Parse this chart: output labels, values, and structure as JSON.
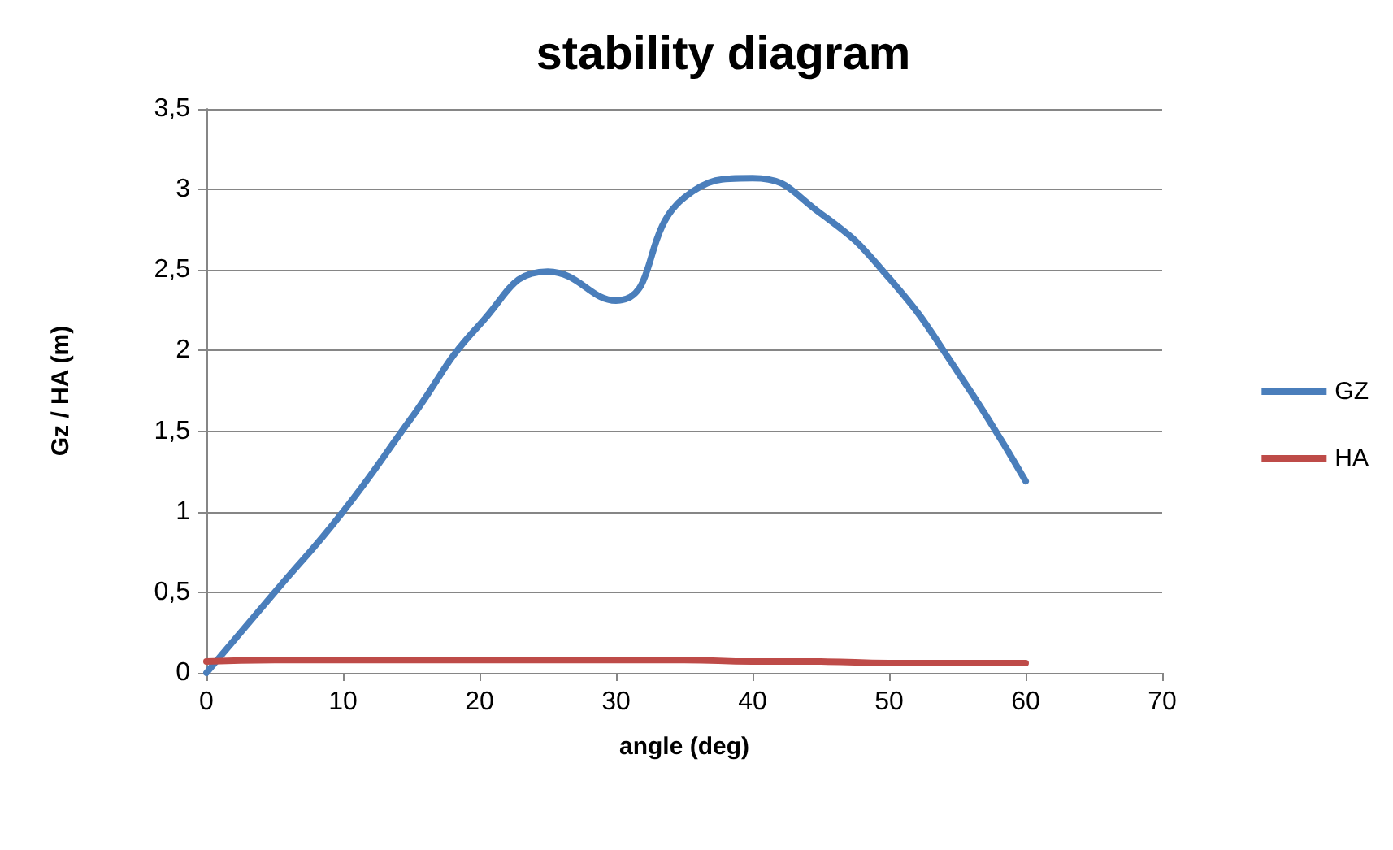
{
  "chart_data": {
    "type": "line",
    "title": "stability diagram",
    "xlabel": "angle (deg)",
    "ylabel": "Gz / HA (m)",
    "x": [
      0,
      5,
      10,
      15,
      20,
      25,
      30,
      35,
      40,
      45,
      50,
      55,
      60
    ],
    "series": [
      {
        "name": "GZ",
        "color": "#4a7ebb",
        "values": [
          0,
          0.5,
          1.0,
          1.58,
          2.16,
          2.49,
          2.31,
          2.95,
          3.07,
          2.85,
          2.45,
          1.87,
          1.19
        ]
      },
      {
        "name": "HA",
        "color": "#be4b48",
        "values": [
          0.07,
          0.08,
          0.08,
          0.08,
          0.08,
          0.08,
          0.08,
          0.08,
          0.07,
          0.07,
          0.06,
          0.06,
          0.06
        ]
      }
    ],
    "xlim": [
      0,
      70
    ],
    "xticks": [
      0,
      10,
      20,
      30,
      40,
      50,
      60,
      70
    ],
    "ylim": [
      0,
      3.5
    ],
    "yticks": [
      0,
      {
        "value": 0.5,
        "label": "0,5"
      },
      1,
      {
        "value": 1.5,
        "label": "1,5"
      },
      2,
      {
        "value": 2.5,
        "label": "2,5"
      },
      3,
      {
        "value": 3.5,
        "label": "3,5"
      }
    ],
    "grid": "y",
    "legend": "right",
    "marker": "none",
    "line_style": "solid"
  }
}
